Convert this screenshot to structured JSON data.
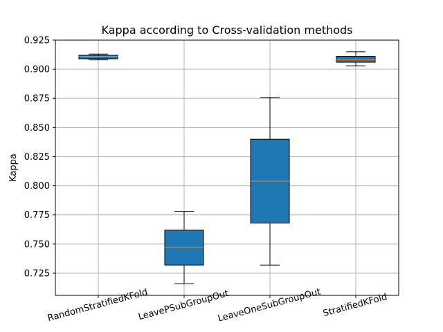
{
  "chart_data": {
    "type": "box",
    "title": "Kappa according to Cross-validation methods",
    "xlabel": "",
    "ylabel": "Kappa",
    "ylim": [
      0.706,
      0.925
    ],
    "yticks": [
      "0.725",
      "0.750",
      "0.775",
      "0.800",
      "0.825",
      "0.850",
      "0.875",
      "0.900",
      "0.925"
    ],
    "grid": true,
    "x_tick_rotation": "15deg",
    "categories": [
      "RandomStratifiedKFold",
      "LeavePSubGroupOut",
      "LeaveOneSubGroupOut",
      "StratifiedKFold"
    ],
    "boxes": [
      {
        "category": "RandomStratifiedKFold",
        "whisker_low": 0.908,
        "q1": 0.909,
        "median": 0.911,
        "q3": 0.912,
        "whisker_high": 0.913
      },
      {
        "category": "LeavePSubGroupOut",
        "whisker_low": 0.716,
        "q1": 0.732,
        "median": 0.747,
        "q3": 0.762,
        "whisker_high": 0.778
      },
      {
        "category": "LeaveOneSubGroupOut",
        "whisker_low": 0.732,
        "q1": 0.768,
        "median": 0.804,
        "q3": 0.84,
        "whisker_high": 0.876
      },
      {
        "category": "StratifiedKFold",
        "whisker_low": 0.903,
        "q1": 0.906,
        "median": 0.908,
        "q3": 0.911,
        "whisker_high": 0.915
      }
    ],
    "colors": {
      "box": "#1f77b4",
      "median": "#ff7f0e",
      "grid": "#b0b0b0"
    }
  }
}
